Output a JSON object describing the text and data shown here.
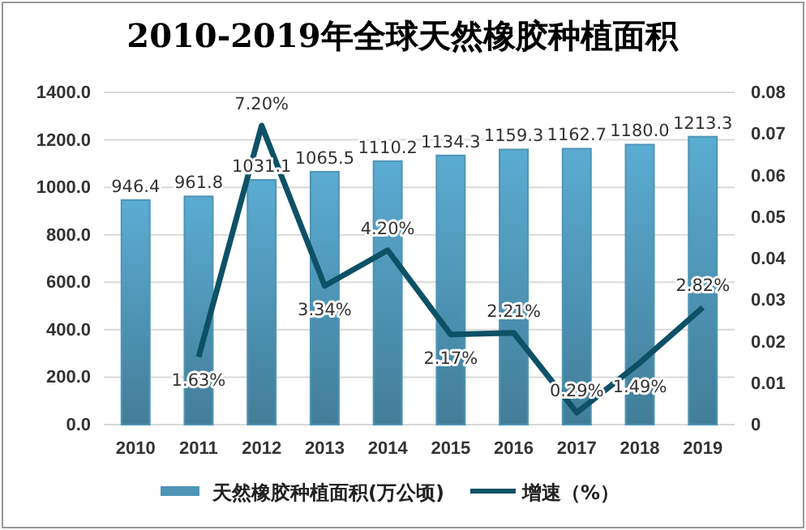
{
  "chart_data": {
    "type": "bar",
    "title": "2010-2019年全球天然橡胶种植面积",
    "categories": [
      "2010",
      "2011",
      "2012",
      "2013",
      "2014",
      "2015",
      "2016",
      "2017",
      "2018",
      "2019"
    ],
    "series": [
      {
        "name": "天然橡胶种植面积(万公顷)",
        "color": "#4f95b6",
        "values": [
          946.4,
          961.8,
          1031.1,
          1065.5,
          1110.2,
          1134.3,
          1159.3,
          1162.7,
          1180.0,
          1213.3
        ],
        "value_labels": [
          "946.4",
          "961.8",
          "1031.1",
          "1065.5",
          "1110.2",
          "1134.3",
          "1159.3",
          "1162.7",
          "1180.0",
          "1213.3"
        ]
      },
      {
        "name": "增速（%）",
        "type": "line",
        "axis": "y2",
        "color": "#0e5166",
        "values": [
          null,
          0.0163,
          0.072,
          0.0334,
          0.042,
          0.0217,
          0.0221,
          0.0029,
          0.0149,
          0.0282
        ],
        "value_labels": [
          null,
          "1.63%",
          "7.20%",
          "3.34%",
          "4.20%",
          "2.17%",
          "2.21%",
          "0.29%",
          "1.49%",
          "2.82%"
        ]
      }
    ],
    "ylim": [
      0,
      1400
    ],
    "yticks": [
      {
        "value": 0,
        "label": "0.0"
      },
      {
        "value": 200,
        "label": "200.0"
      },
      {
        "value": 400,
        "label": "400.0"
      },
      {
        "value": 600,
        "label": "600.0"
      },
      {
        "value": 800,
        "label": "800.0"
      },
      {
        "value": 1000,
        "label": "1000.0"
      },
      {
        "value": 1200,
        "label": "1200.0"
      },
      {
        "value": 1400,
        "label": "1400.0"
      }
    ],
    "y2lim": [
      0,
      0.08
    ],
    "y2ticks": [
      0,
      0.01,
      0.02,
      0.03,
      0.04,
      0.05,
      0.06,
      0.07,
      0.08
    ],
    "grid": "y",
    "legend": "bottom",
    "marker": "none",
    "line_style": "solid"
  }
}
